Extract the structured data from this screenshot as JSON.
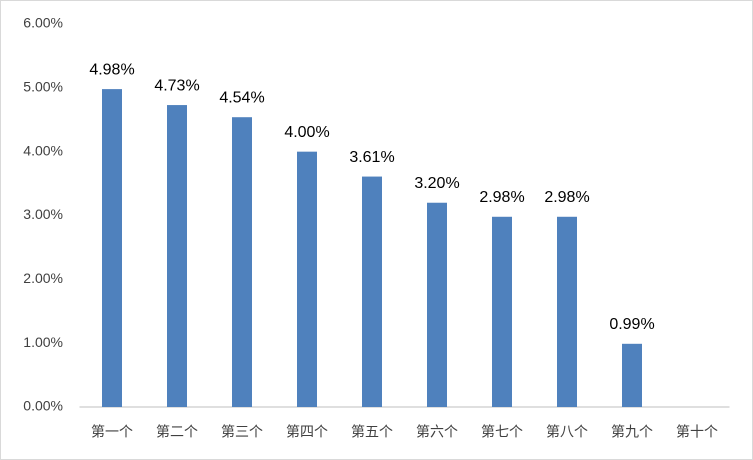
{
  "chart_data": {
    "type": "bar",
    "categories": [
      "第一个",
      "第二个",
      "第三个",
      "第四个",
      "第五个",
      "第六个",
      "第七个",
      "第八个",
      "第九个",
      "第十个"
    ],
    "values": [
      4.98,
      4.73,
      4.54,
      4.0,
      3.61,
      3.2,
      2.98,
      2.98,
      0.99,
      null
    ],
    "value_labels": [
      "4.98%",
      "4.73%",
      "4.54%",
      "4.00%",
      "3.61%",
      "3.20%",
      "2.98%",
      "2.98%",
      "0.99%",
      null
    ],
    "color": "#4f81bd",
    "ylim": [
      0,
      6
    ],
    "yticks": [
      {
        "value": 0,
        "label": "0.00%"
      },
      {
        "value": 1,
        "label": "1.00%"
      },
      {
        "value": 2,
        "label": "2.00%"
      },
      {
        "value": 3,
        "label": "3.00%"
      },
      {
        "value": 4,
        "label": "4.00%"
      },
      {
        "value": 5,
        "label": "5.00%"
      },
      {
        "value": 6,
        "label": "6.00%"
      }
    ],
    "grid": false
  }
}
